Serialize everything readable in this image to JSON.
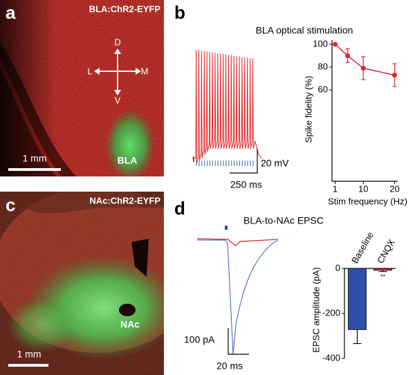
{
  "panel_a": {
    "label": "a",
    "title": "BLA:ChR2-EYFP",
    "axes": {
      "dorsal": "D",
      "ventral": "V",
      "lateral": "L",
      "medial": "M"
    },
    "region": "BLA",
    "scale_bar": "1 mm"
  },
  "panel_b": {
    "label": "b",
    "title": "BLA optical stimulation",
    "scale_y": "20 mV",
    "scale_x": "250 ms"
  },
  "panel_c": {
    "label": "c",
    "title": "NAc:ChR2-EYFP",
    "region": "NAc",
    "scale_bar": "1 mm"
  },
  "panel_d": {
    "label": "d",
    "title": "BLA-to-NAc EPSC",
    "scale_y": "100 pA",
    "scale_x": "20 ms"
  },
  "chart_data": [
    {
      "type": "line",
      "x": [
        1,
        5,
        10,
        20
      ],
      "values": [
        100,
        90,
        79,
        73
      ],
      "errors": [
        0,
        6,
        10,
        10
      ],
      "color": "#e0262a",
      "xlim": [
        0,
        21
      ],
      "xticks": [
        1,
        10,
        20
      ],
      "ylim": [
        -20,
        100
      ],
      "yticks": [
        60,
        80,
        100
      ],
      "xlabel": "Stim frequency (Hz)",
      "ylabel": "Spike fidelity (%)"
    },
    {
      "type": "bar",
      "categories": [
        "Baseline",
        "CNQX"
      ],
      "values": [
        -272,
        -8
      ],
      "errors": [
        62,
        6
      ],
      "colors": [
        "#2e4fa8",
        "#d93030"
      ],
      "annotation": "**",
      "ylim": [
        -400,
        0
      ],
      "yticks": [
        0,
        -200,
        -400
      ],
      "ylabel": "EPSC amplitude (pA)"
    }
  ]
}
